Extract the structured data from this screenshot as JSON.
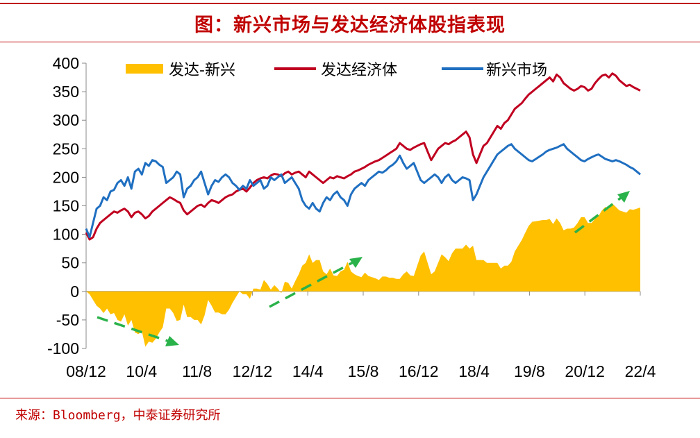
{
  "title": "图：新兴市场与发达经济体股指表现",
  "source": "来源：Bloomberg，中泰证券研究所",
  "colors": {
    "accent": "#c00000",
    "developed": "#c00020",
    "emerging": "#1f6fc1",
    "diff": "#ffc000",
    "arrow": "#2ab24a"
  },
  "chart_data": {
    "type": "line",
    "ylim": [
      -100,
      400
    ],
    "yticks": [
      "400",
      "350",
      "300",
      "250",
      "200",
      "150",
      "100",
      "50",
      "0",
      "-50",
      "-100"
    ],
    "xtick_labels": [
      "08/12",
      "10/4",
      "11/8",
      "12/12",
      "14/4",
      "15/8",
      "16/12",
      "18/4",
      "19/8",
      "20/12",
      "22/4"
    ],
    "legend": [
      "发达-新兴",
      "发达经济体",
      "新兴市场"
    ],
    "series": [
      {
        "name": "发达经济体",
        "type": "line",
        "x": [
          0,
          1,
          2,
          3,
          4,
          5,
          6,
          7,
          8,
          9,
          10,
          11,
          12,
          13,
          14,
          15,
          16,
          17,
          18,
          19,
          20,
          21,
          22,
          23,
          24,
          25,
          26,
          27,
          28,
          29,
          30,
          31,
          32,
          33,
          34,
          35,
          36,
          37,
          38,
          39,
          40,
          41,
          42,
          43,
          44,
          45,
          46,
          47,
          48,
          49,
          50,
          51,
          52,
          53,
          54,
          55,
          56,
          57,
          58,
          59,
          60,
          61,
          62,
          63,
          64,
          65,
          66,
          67,
          68,
          69,
          70,
          71,
          72,
          73,
          74,
          75,
          76,
          77,
          78,
          79,
          80,
          81,
          82,
          83,
          84,
          85,
          86,
          87,
          88,
          89,
          90,
          91,
          92,
          93,
          94,
          95,
          96,
          97,
          98,
          99,
          100,
          101,
          102,
          103,
          104,
          105,
          106,
          107,
          108,
          109,
          110,
          111,
          112,
          113,
          114,
          115,
          116,
          117,
          118,
          119,
          120,
          121,
          122,
          123,
          124,
          125,
          126,
          127,
          128,
          129,
          130,
          131,
          132,
          133,
          134,
          135,
          136,
          137,
          138,
          139,
          140,
          141,
          142,
          143,
          144,
          145,
          146,
          147,
          148,
          149,
          150,
          151,
          152,
          153,
          154,
          155,
          156,
          157,
          158,
          159
        ],
        "values": [
          103,
          91,
          95,
          110,
          120,
          125,
          130,
          135,
          140,
          138,
          142,
          145,
          140,
          130,
          138,
          140,
          135,
          128,
          132,
          140,
          145,
          150,
          155,
          160,
          165,
          162,
          158,
          155,
          142,
          135,
          140,
          145,
          150,
          152,
          148,
          155,
          160,
          158,
          155,
          160,
          165,
          168,
          170,
          175,
          178,
          180,
          175,
          182,
          190,
          195,
          198,
          200,
          198,
          203,
          206,
          205,
          202,
          207,
          210,
          205,
          208,
          210,
          205,
          200,
          210,
          205,
          200,
          195,
          190,
          195,
          200,
          198,
          202,
          200,
          198,
          202,
          205,
          210,
          212,
          215,
          218,
          222,
          225,
          228,
          230,
          234,
          238,
          242,
          246,
          250,
          260,
          255,
          250,
          248,
          252,
          255,
          258,
          260,
          245,
          230,
          240,
          250,
          255,
          260,
          258,
          262,
          265,
          270,
          275,
          280,
          270,
          240,
          225,
          240,
          255,
          260,
          270,
          280,
          290,
          285,
          295,
          300,
          310,
          320,
          325,
          330,
          338,
          345,
          350,
          355,
          360,
          365,
          370,
          375,
          368,
          380,
          375,
          365,
          360,
          355,
          352,
          355,
          360,
          358,
          352,
          355,
          365,
          372,
          378,
          380,
          375,
          382,
          378,
          370,
          365,
          360,
          362,
          358,
          355,
          352
        ]
      },
      {
        "name": "新兴市场",
        "type": "line",
        "x": [
          0,
          1,
          2,
          3,
          4,
          5,
          6,
          7,
          8,
          9,
          10,
          11,
          12,
          13,
          14,
          15,
          16,
          17,
          18,
          19,
          20,
          21,
          22,
          23,
          24,
          25,
          26,
          27,
          28,
          29,
          30,
          31,
          32,
          33,
          34,
          35,
          36,
          37,
          38,
          39,
          40,
          41,
          42,
          43,
          44,
          45,
          46,
          47,
          48,
          49,
          50,
          51,
          52,
          53,
          54,
          55,
          56,
          57,
          58,
          59,
          60,
          61,
          62,
          63,
          64,
          65,
          66,
          67,
          68,
          69,
          70,
          71,
          72,
          73,
          74,
          75,
          76,
          77,
          78,
          79,
          80,
          81,
          82,
          83,
          84,
          85,
          86,
          87,
          88,
          89,
          90,
          91,
          92,
          93,
          94,
          95,
          96,
          97,
          98,
          99,
          100,
          101,
          102,
          103,
          104,
          105,
          106,
          107,
          108,
          109,
          110,
          111,
          112,
          113,
          114,
          115,
          116,
          117,
          118,
          119,
          120,
          121,
          122,
          123,
          124,
          125,
          126,
          127,
          128,
          129,
          130,
          131,
          132,
          133,
          134,
          135,
          136,
          137,
          138,
          139,
          140,
          141,
          142,
          143,
          144,
          145,
          146,
          147,
          148,
          149,
          150,
          151,
          152,
          153,
          154,
          155,
          156,
          157,
          158,
          159
        ],
        "values": [
          110,
          95,
          120,
          145,
          150,
          165,
          160,
          175,
          178,
          190,
          195,
          185,
          200,
          180,
          210,
          215,
          205,
          225,
          220,
          230,
          228,
          222,
          218,
          190,
          195,
          200,
          210,
          205,
          165,
          180,
          185,
          195,
          200,
          210,
          190,
          170,
          185,
          195,
          192,
          200,
          205,
          200,
          190,
          185,
          178,
          185,
          180,
          195,
          185,
          190,
          195,
          180,
          185,
          200,
          195,
          200,
          205,
          190,
          195,
          200,
          190,
          180,
          160,
          150,
          145,
          155,
          145,
          140,
          155,
          165,
          160,
          170,
          175,
          165,
          160,
          150,
          170,
          180,
          185,
          190,
          185,
          195,
          200,
          205,
          210,
          208,
          212,
          218,
          222,
          228,
          238,
          225,
          215,
          220,
          225,
          210,
          195,
          190,
          195,
          200,
          205,
          200,
          190,
          200,
          205,
          195,
          190,
          195,
          200,
          198,
          195,
          160,
          170,
          185,
          200,
          210,
          220,
          230,
          240,
          245,
          250,
          255,
          258,
          250,
          245,
          240,
          235,
          230,
          228,
          232,
          236,
          240,
          245,
          248,
          250,
          252,
          255,
          258,
          250,
          245,
          240,
          235,
          230,
          228,
          232,
          235,
          238,
          240,
          236,
          232,
          230,
          228,
          230,
          228,
          225,
          222,
          218,
          215,
          210,
          205
        ]
      },
      {
        "name": "发达-新兴",
        "type": "area",
        "x": [
          0,
          1,
          2,
          3,
          4,
          5,
          6,
          7,
          8,
          9,
          10,
          11,
          12,
          13,
          14,
          15,
          16,
          17,
          18,
          19,
          20,
          21,
          22,
          23,
          24,
          25,
          26,
          27,
          28,
          29,
          30,
          31,
          32,
          33,
          34,
          35,
          36,
          37,
          38,
          39,
          40,
          41,
          42,
          43,
          44,
          45,
          46,
          47,
          48,
          49,
          50,
          51,
          52,
          53,
          54,
          55,
          56,
          57,
          58,
          59,
          60,
          61,
          62,
          63,
          64,
          65,
          66,
          67,
          68,
          69,
          70,
          71,
          72,
          73,
          74,
          75,
          76,
          77,
          78,
          79,
          80,
          81,
          82,
          83,
          84,
          85,
          86,
          87,
          88,
          89,
          90,
          91,
          92,
          93,
          94,
          95,
          96,
          97,
          98,
          99,
          100,
          101,
          102,
          103,
          104,
          105,
          106,
          107,
          108,
          109,
          110,
          111,
          112,
          113,
          114,
          115,
          116,
          117,
          118,
          119,
          120,
          121,
          122,
          123,
          124,
          125,
          126,
          127,
          128,
          129,
          130,
          131,
          132,
          133,
          134,
          135,
          136,
          137,
          138,
          139,
          140,
          141,
          142,
          143,
          144,
          145,
          146,
          147,
          148,
          149,
          150,
          151,
          152,
          153,
          154,
          155,
          156,
          157,
          158,
          159
        ],
        "values": [
          0,
          -5,
          -15,
          -25,
          -30,
          -38,
          -30,
          -40,
          -38,
          -50,
          -53,
          -40,
          -60,
          -50,
          -72,
          -75,
          -70,
          -97,
          -88,
          -90,
          -83,
          -72,
          -63,
          -30,
          -30,
          -38,
          -52,
          -50,
          -23,
          -45,
          -45,
          -50,
          -50,
          -58,
          -42,
          -15,
          -25,
          -37,
          -37,
          -40,
          -40,
          -32,
          -20,
          -10,
          0,
          -5,
          -5,
          -13,
          5,
          5,
          3,
          20,
          13,
          3,
          11,
          5,
          -3,
          17,
          15,
          5,
          18,
          30,
          45,
          50,
          65,
          50,
          55,
          55,
          35,
          30,
          40,
          28,
          27,
          35,
          38,
          52,
          35,
          30,
          27,
          25,
          33,
          27,
          25,
          23,
          20,
          26,
          26,
          24,
          24,
          22,
          22,
          30,
          35,
          28,
          27,
          45,
          63,
          70,
          50,
          30,
          35,
          50,
          65,
          60,
          53,
          67,
          75,
          75,
          75,
          82,
          75,
          80,
          55,
          55,
          55,
          50,
          50,
          50,
          50,
          40,
          45,
          45,
          52,
          70,
          80,
          90,
          103,
          115,
          122,
          123,
          124,
          125,
          125,
          127,
          118,
          128,
          120,
          107,
          110,
          110,
          112,
          120,
          130,
          130,
          120,
          120,
          127,
          132,
          142,
          148,
          145,
          154,
          148,
          142,
          140,
          138,
          144,
          143,
          145,
          147
        ]
      }
    ]
  }
}
